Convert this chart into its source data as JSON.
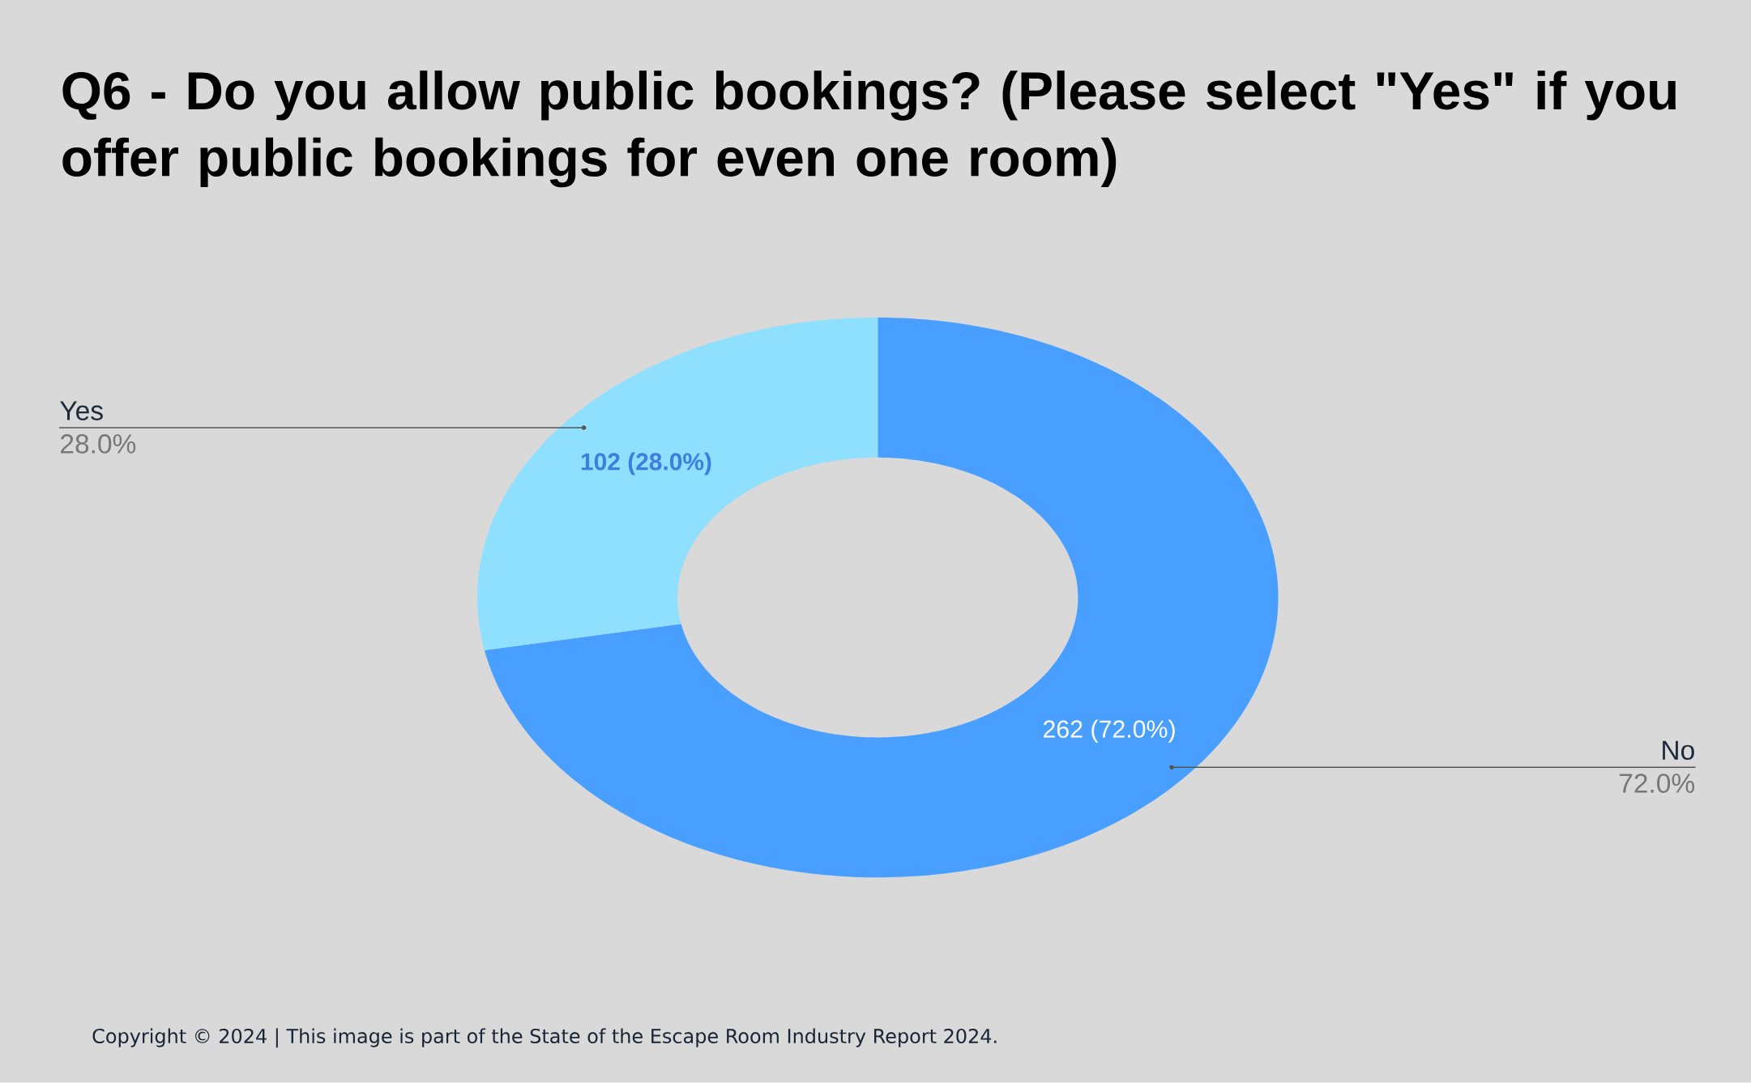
{
  "chart_data": {
    "type": "donut",
    "title": "Q6 - Do you allow public bookings? (Please select \"Yes\" if you offer public bookings for even one room)",
    "categories": [
      "No",
      "Yes"
    ],
    "values": [
      262,
      102
    ],
    "colors": [
      "#489fff",
      "#8fdfff"
    ],
    "value_labels": [
      "262 (72.0%)",
      "102 (28.0%)"
    ],
    "annotations": [
      {
        "text": "72.0%",
        "x": "No"
      },
      {
        "text": "28.0%",
        "x": "Yes"
      },
      "Copyright © 2024 | This image is part of the State of the Escape Room Industry Report 2024."
    ]
  }
}
